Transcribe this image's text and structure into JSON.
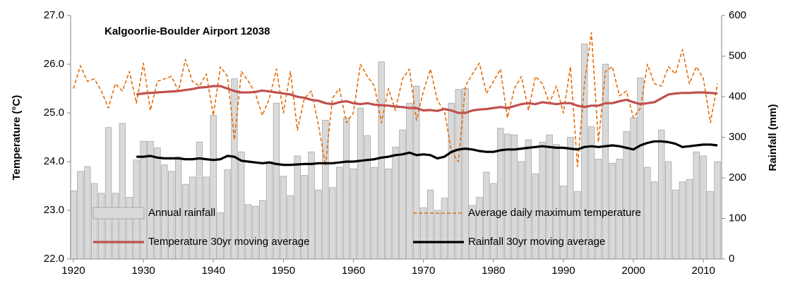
{
  "chart_data": {
    "type": "combo",
    "title": "Kalgoorlie-Boulder Airport 12038",
    "y_label": "Temperature (°C)",
    "y2_label": "Rainfall (mm)",
    "x": [
      1920,
      1921,
      1922,
      1923,
      1924,
      1925,
      1926,
      1927,
      1928,
      1929,
      1930,
      1931,
      1932,
      1933,
      1934,
      1935,
      1936,
      1937,
      1938,
      1939,
      1940,
      1941,
      1942,
      1943,
      1944,
      1945,
      1946,
      1947,
      1948,
      1949,
      1950,
      1951,
      1952,
      1953,
      1954,
      1955,
      1956,
      1957,
      1958,
      1959,
      1960,
      1961,
      1962,
      1963,
      1964,
      1965,
      1966,
      1967,
      1968,
      1969,
      1970,
      1971,
      1972,
      1973,
      1974,
      1975,
      1976,
      1977,
      1978,
      1979,
      1980,
      1981,
      1982,
      1983,
      1984,
      1985,
      1986,
      1987,
      1988,
      1989,
      1990,
      1991,
      1992,
      1993,
      1994,
      1995,
      1996,
      1997,
      1998,
      1999,
      2000,
      2001,
      2002,
      2003,
      2004,
      2005,
      2006,
      2007,
      2008,
      2009,
      2010,
      2011,
      2012
    ],
    "xlim": [
      1919.6,
      2012.6
    ],
    "xticks": [
      1920,
      1930,
      1940,
      1950,
      1960,
      1970,
      1980,
      1990,
      2000,
      2010
    ],
    "ylim": [
      22,
      27
    ],
    "yticks": [
      {
        "value": 22,
        "label": "22.0"
      },
      {
        "value": 23,
        "label": "23.0"
      },
      {
        "value": 24,
        "label": "24.0"
      },
      {
        "value": 25,
        "label": "25.0"
      },
      {
        "value": 26,
        "label": "26.0"
      },
      {
        "value": 27,
        "label": "27.0"
      }
    ],
    "y2lim": [
      0,
      600
    ],
    "y2ticks": [
      0,
      100,
      200,
      300,
      400,
      500,
      600
    ],
    "series": [
      {
        "name": "Annual rainfall",
        "type": "bar",
        "axis": "y2",
        "color": "#d9d9d9",
        "values": [
          168,
          216,
          228,
          186,
          162,
          324,
          162,
          334,
          152,
          244,
          290,
          290,
          274,
          232,
          216,
          252,
          184,
          202,
          288,
          202,
          354,
          114,
          220,
          444,
          264,
          134,
          130,
          144,
          240,
          384,
          204,
          156,
          254,
          206,
          264,
          170,
          342,
          176,
          226,
          348,
          222,
          372,
          304,
          226,
          486,
          222,
          276,
          318,
          384,
          426,
          126,
          170,
          120,
          150,
          384,
          418,
          420,
          132,
          152,
          214,
          186,
          322,
          308,
          306,
          240,
          294,
          210,
          288,
          306,
          282,
          180,
          300,
          166,
          530,
          326,
          246,
          480,
          236,
          246,
          314,
          348,
          446,
          226,
          190,
          318,
          240,
          170,
          190,
          196,
          264,
          254,
          166,
          240
        ]
      },
      {
        "name": "Average daily maximum temperature",
        "type": "line",
        "dash": true,
        "color": "#e36c09",
        "values": [
          25.5,
          25.97,
          25.65,
          25.7,
          25.45,
          25.1,
          25.6,
          25.45,
          25.85,
          25.2,
          26.02,
          25.05,
          25.65,
          25.7,
          25.75,
          25.45,
          26.1,
          25.65,
          25.55,
          25.8,
          24.95,
          25.95,
          25.75,
          24.45,
          25.85,
          25.65,
          25.4,
          24.95,
          25.3,
          25.9,
          25.0,
          25.85,
          24.65,
          25.3,
          25.45,
          24.75,
          23.92,
          25.3,
          25.5,
          24.8,
          25.0,
          26.0,
          25.75,
          25.55,
          24.8,
          25.5,
          25.05,
          25.7,
          25.9,
          24.85,
          25.45,
          25.9,
          25.25,
          25.05,
          24.2,
          24.0,
          25.55,
          25.8,
          26.02,
          25.4,
          25.65,
          25.9,
          24.9,
          25.5,
          25.75,
          25.05,
          25.75,
          25.6,
          25.2,
          25.55,
          25.0,
          25.95,
          23.9,
          25.6,
          26.65,
          24.4,
          25.85,
          25.95,
          25.35,
          25.45,
          24.9,
          25.1,
          26.0,
          25.6,
          25.55,
          25.95,
          25.8,
          26.3,
          25.6,
          25.95,
          25.7,
          24.8,
          25.6
        ]
      },
      {
        "name": "Temperature 30yr moving average",
        "type": "line",
        "color": "#c0504d",
        "values": [
          null,
          null,
          null,
          null,
          null,
          null,
          null,
          null,
          null,
          25.38,
          25.4,
          25.41,
          25.42,
          25.43,
          25.44,
          25.45,
          25.47,
          25.49,
          25.52,
          25.53,
          25.55,
          25.55,
          25.5,
          25.45,
          25.42,
          25.42,
          25.43,
          25.46,
          25.44,
          25.42,
          25.4,
          25.38,
          25.33,
          25.31,
          25.27,
          25.25,
          25.2,
          25.18,
          25.22,
          25.24,
          25.2,
          25.18,
          25.2,
          25.17,
          25.16,
          25.15,
          25.13,
          25.12,
          25.1,
          25.1,
          25.05,
          25.06,
          25.04,
          25.08,
          25.05,
          25.0,
          25.0,
          25.05,
          25.07,
          25.08,
          25.1,
          25.12,
          25.1,
          25.14,
          25.18,
          25.2,
          25.18,
          25.22,
          25.2,
          25.18,
          25.2,
          25.2,
          25.15,
          25.12,
          25.15,
          25.15,
          25.2,
          25.2,
          25.24,
          25.27,
          25.22,
          25.18,
          25.2,
          25.22,
          25.3,
          25.38,
          25.4,
          25.41,
          25.41,
          25.42,
          25.42,
          25.41,
          25.4
        ]
      },
      {
        "name": "Rainfall 30yr moving average",
        "type": "line",
        "axis": "y2",
        "color": "#000000",
        "values": [
          null,
          null,
          null,
          null,
          null,
          null,
          null,
          null,
          null,
          252,
          252,
          254,
          250,
          248,
          248,
          248,
          246,
          246,
          248,
          246,
          244,
          246,
          254,
          252,
          242,
          240,
          238,
          236,
          238,
          234,
          232,
          232,
          233,
          234,
          234,
          236,
          236,
          236,
          238,
          240,
          240,
          242,
          244,
          246,
          250,
          252,
          256,
          258,
          262,
          256,
          258,
          256,
          248,
          252,
          264,
          270,
          272,
          270,
          266,
          264,
          264,
          268,
          270,
          270,
          272,
          274,
          276,
          278,
          276,
          274,
          274,
          272,
          270,
          276,
          278,
          276,
          278,
          280,
          278,
          274,
          270,
          280,
          286,
          290,
          290,
          288,
          284,
          276,
          278,
          280,
          282,
          282,
          280
        ]
      }
    ]
  }
}
